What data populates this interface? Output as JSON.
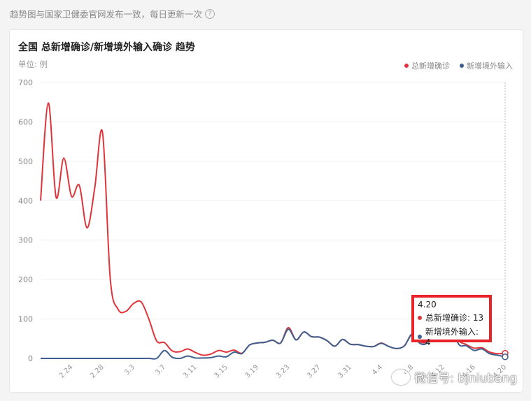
{
  "note": {
    "text": "趋势图与国家卫健委官网发布一致，每日更新一次",
    "icon": "help-icon"
  },
  "card": {
    "title": "全国 总新增确诊/新增境外输入确诊 趋势",
    "unit": "单位: 例"
  },
  "legend": [
    {
      "label": "总新增确诊",
      "color": "#e0343b"
    },
    {
      "label": "新增境外输入",
      "color": "#3f5f8f"
    }
  ],
  "tooltip": {
    "date": "4.20",
    "rows": [
      {
        "text": "总新增确诊: 13",
        "color": "#e0343b"
      },
      {
        "text": "新增境外输入: 4",
        "color": "#3f5f8f"
      }
    ]
  },
  "watermark": "微信号: bjniubang",
  "chart_data": {
    "type": "line",
    "ylim": [
      0,
      700
    ],
    "yticks": [
      0,
      100,
      200,
      300,
      400,
      500,
      600,
      700
    ],
    "xtick_labels": [
      "2.24",
      "2.28",
      "3.3",
      "3.7",
      "3.11",
      "3.15",
      "3.19",
      "3.23",
      "3.27",
      "3.31",
      "4.4",
      "4.8",
      "4.12",
      "4.16",
      "4.20"
    ],
    "x": [
      "2.20",
      "2.21",
      "2.22",
      "2.23",
      "2.24",
      "2.25",
      "2.26",
      "2.27",
      "2.28",
      "2.29",
      "3.1",
      "3.2",
      "3.3",
      "3.4",
      "3.5",
      "3.6",
      "3.7",
      "3.8",
      "3.9",
      "3.10",
      "3.11",
      "3.12",
      "3.13",
      "3.14",
      "3.15",
      "3.16",
      "3.17",
      "3.18",
      "3.19",
      "3.20",
      "3.21",
      "3.22",
      "3.23",
      "3.24",
      "3.25",
      "3.26",
      "3.27",
      "3.28",
      "3.29",
      "3.30",
      "3.31",
      "4.1",
      "4.2",
      "4.3",
      "4.4",
      "4.5",
      "4.6",
      "4.7",
      "4.8",
      "4.9",
      "4.10",
      "4.11",
      "4.12",
      "4.13",
      "4.14",
      "4.15",
      "4.16",
      "4.17",
      "4.18",
      "4.19",
      "4.20"
    ],
    "series": [
      {
        "name": "总新增确诊",
        "color": "#e0343b",
        "values": [
          400,
          648,
          409,
          508,
          411,
          439,
          331,
          433,
          573,
          202,
          125,
          119,
          139,
          143,
          99,
          44,
          40,
          19,
          17,
          24,
          15,
          8,
          11,
          20,
          16,
          21,
          13,
          34,
          39,
          41,
          46,
          39,
          78,
          47,
          67,
          55,
          54,
          45,
          31,
          48,
          36,
          35,
          31,
          30,
          39,
          30,
          25,
          32,
          62,
          42,
          46,
          99,
          108,
          89,
          46,
          35,
          26,
          27,
          16,
          12,
          13
        ]
      },
      {
        "name": "新增境外输入",
        "color": "#3f5f8f",
        "values": [
          0,
          0,
          0,
          0,
          0,
          0,
          0,
          0,
          0,
          0,
          0,
          0,
          0,
          0,
          0,
          0,
          20,
          3,
          0,
          6,
          1,
          1,
          2,
          6,
          4,
          16,
          12,
          34,
          39,
          41,
          46,
          39,
          74,
          47,
          67,
          55,
          54,
          45,
          31,
          48,
          36,
          35,
          31,
          30,
          38,
          30,
          25,
          32,
          61,
          38,
          42,
          97,
          98,
          86,
          36,
          32,
          20,
          24,
          12,
          8,
          4
        ]
      }
    ]
  }
}
